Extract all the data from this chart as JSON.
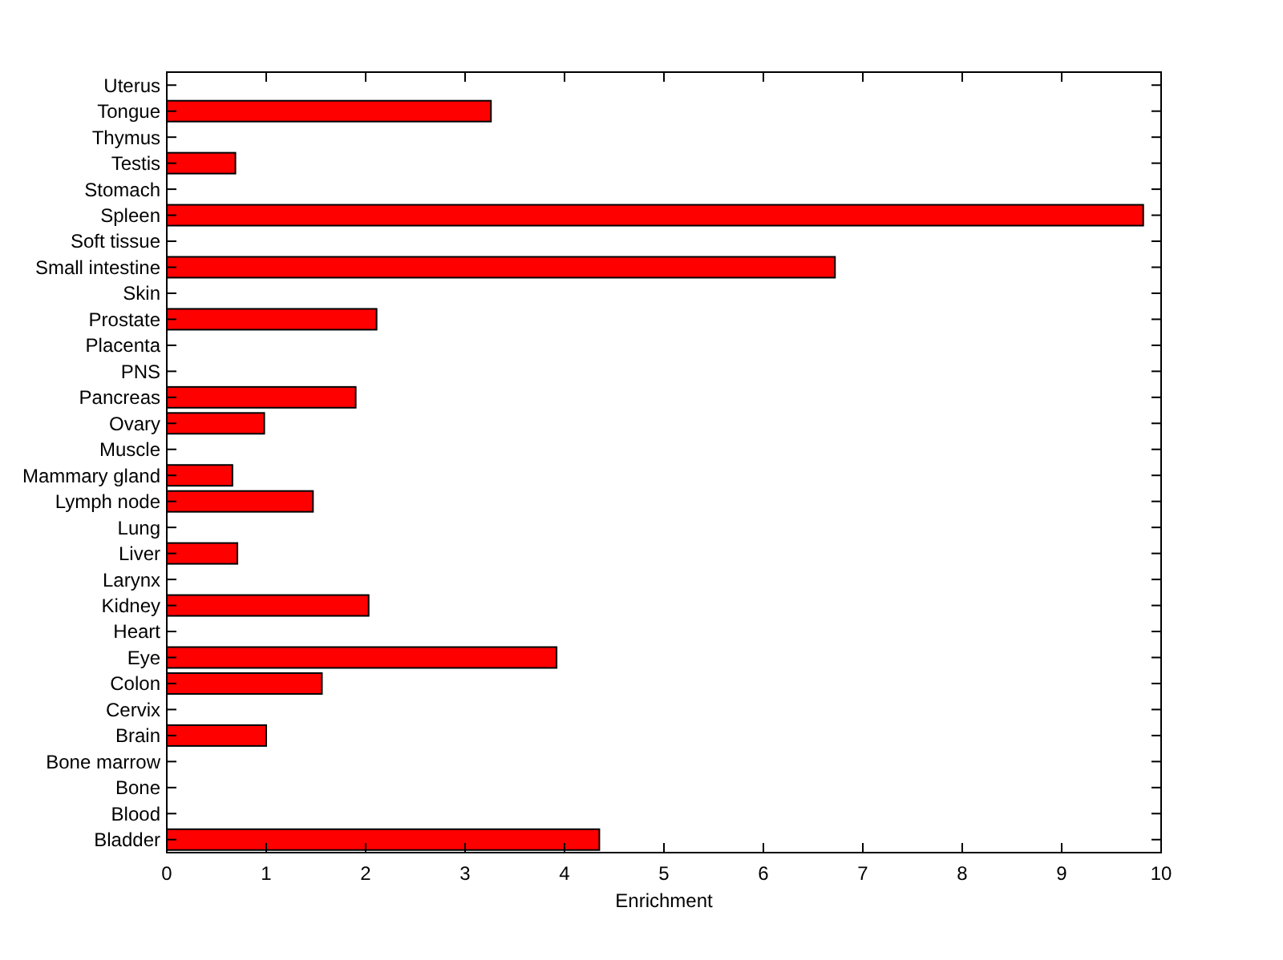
{
  "chart_data": {
    "type": "bar",
    "orientation": "horizontal",
    "xlabel": "Enrichment",
    "categories": [
      "Uterus",
      "Tongue",
      "Thymus",
      "Testis",
      "Stomach",
      "Spleen",
      "Soft tissue",
      "Small intestine",
      "Skin",
      "Prostate",
      "Placenta",
      "PNS",
      "Pancreas",
      "Ovary",
      "Muscle",
      "Mammary gland",
      "Lymph node",
      "Lung",
      "Liver",
      "Larynx",
      "Kidney",
      "Heart",
      "Eye",
      "Colon",
      "Cervix",
      "Brain",
      "Bone marrow",
      "Bone",
      "Blood",
      "Bladder"
    ],
    "values": [
      0,
      3.26,
      0,
      0.69,
      0,
      9.82,
      0,
      6.72,
      0,
      2.11,
      0,
      0,
      1.9,
      0.98,
      0,
      0.66,
      1.47,
      0,
      0.71,
      0,
      2.03,
      0,
      3.92,
      1.56,
      0,
      1.0,
      0,
      0,
      0,
      4.35
    ],
    "color": "#ff0000",
    "xlim": [
      0,
      10
    ],
    "xticks": [
      0,
      1,
      2,
      3,
      4,
      5,
      6,
      7,
      8,
      9,
      10
    ],
    "grid": false
  }
}
